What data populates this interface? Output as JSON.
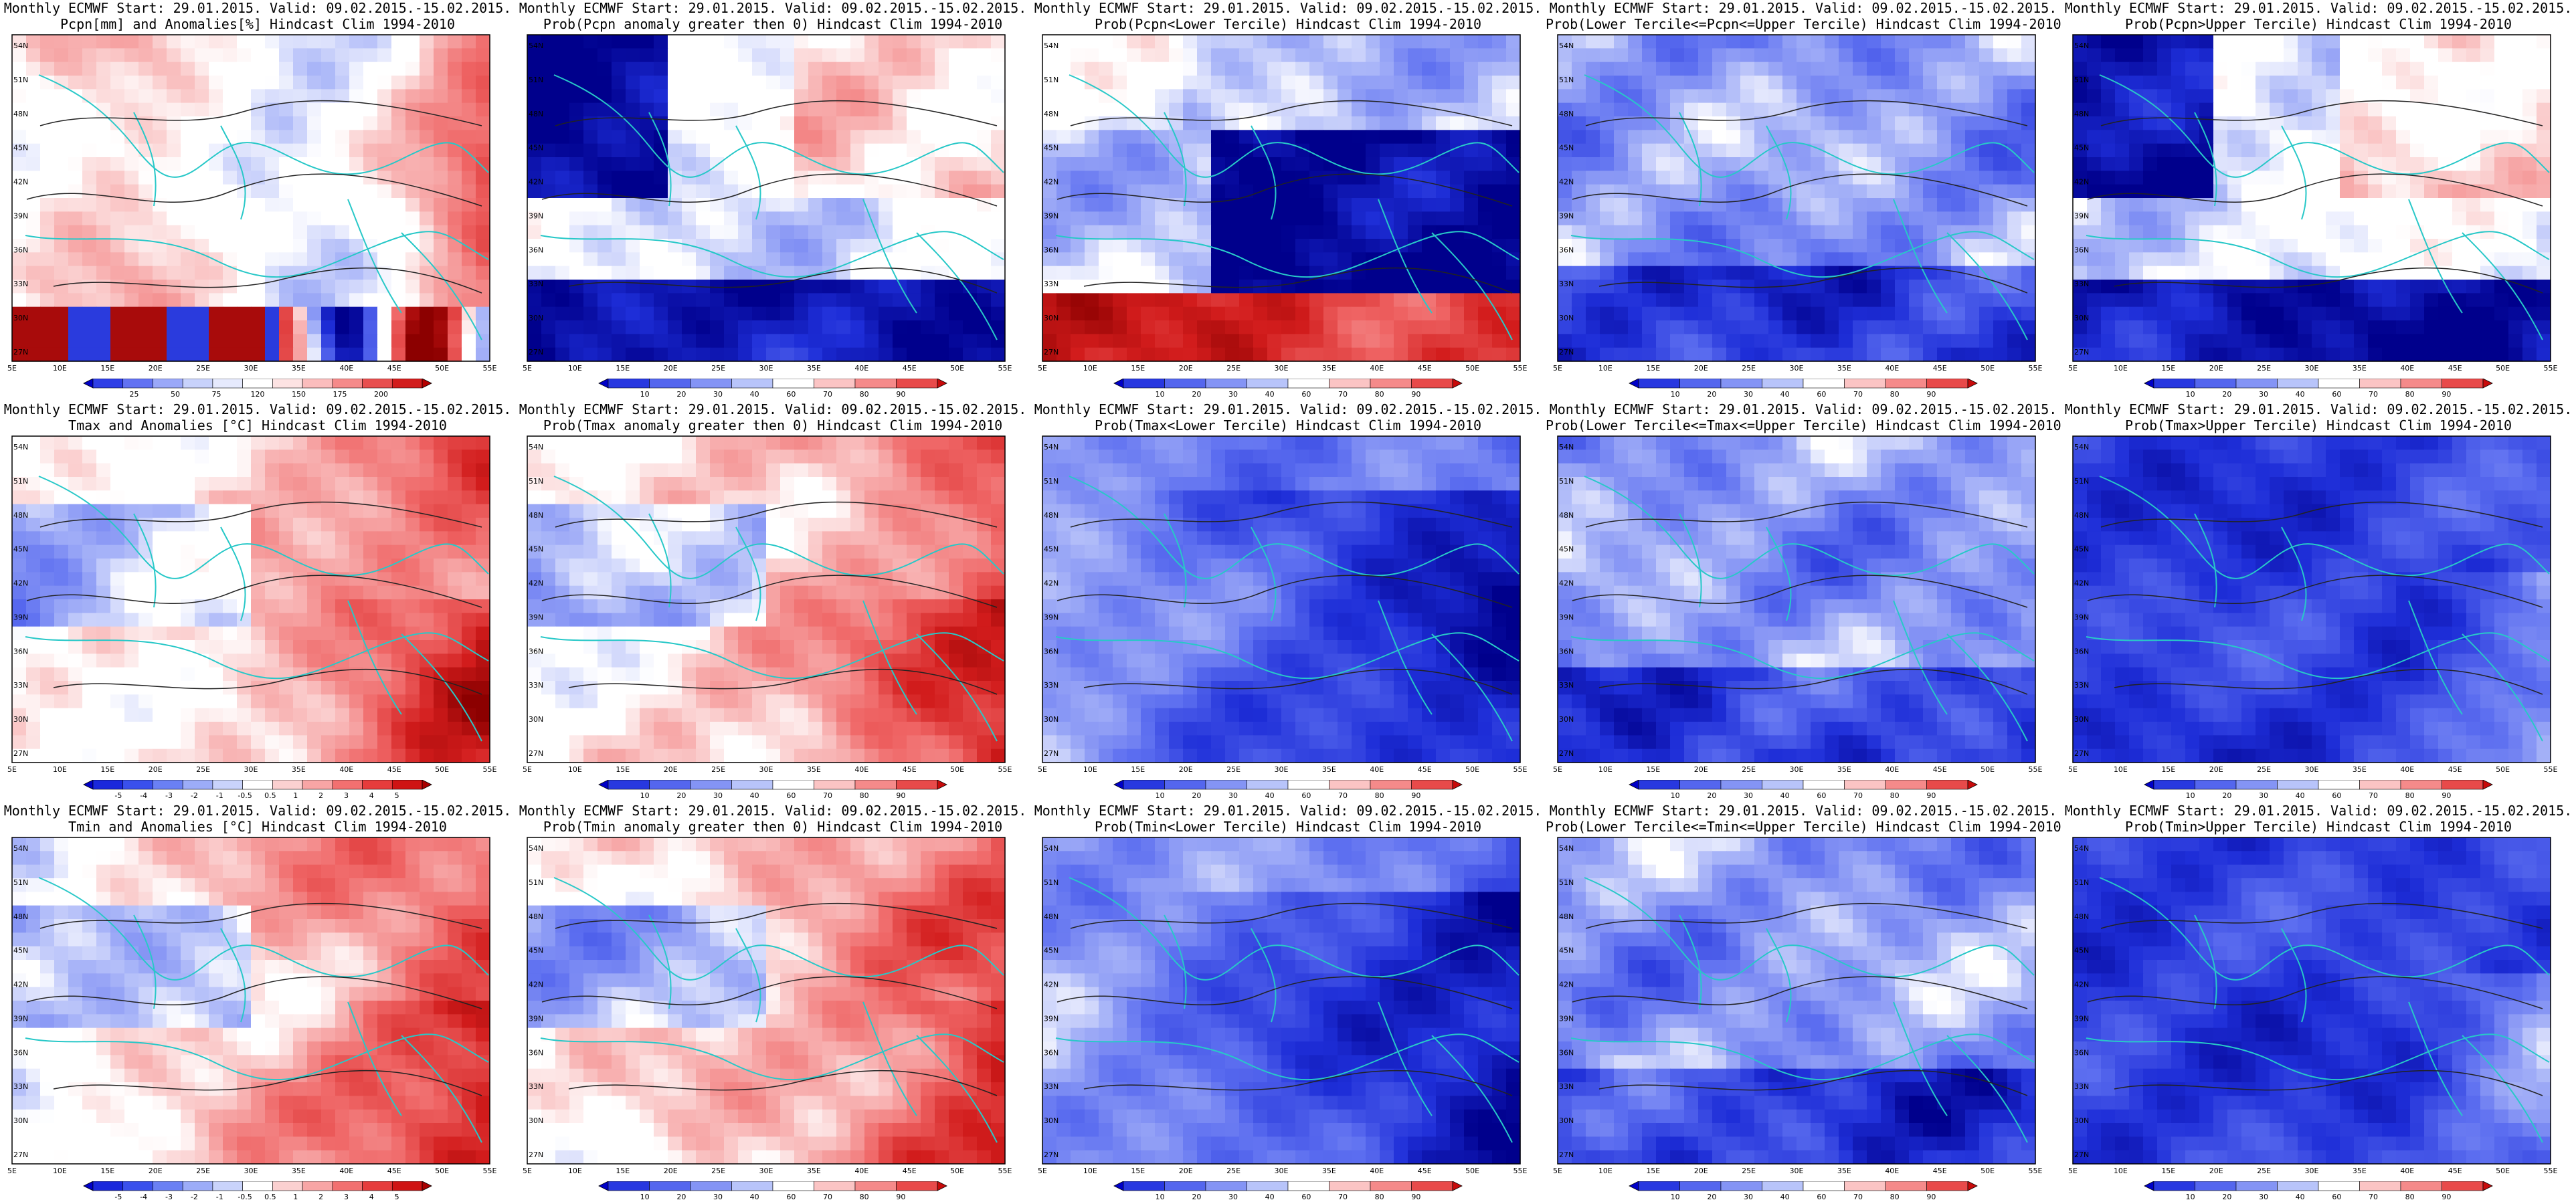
{
  "header": {
    "line1": "Monthly ECMWF Start: 29.01.2015. Valid: 09.02.2015.-15.02.2015."
  },
  "map": {
    "lon_labels": [
      "5E",
      "10E",
      "15E",
      "20E",
      "25E",
      "30E",
      "35E",
      "40E",
      "45E",
      "50E",
      "55E"
    ],
    "lat_labels": [
      "54N",
      "51N",
      "48N",
      "45N",
      "42N",
      "39N",
      "36N",
      "33N",
      "30N",
      "27N"
    ]
  },
  "colorbars": {
    "pcpn_anom": {
      "labels": [
        "25",
        "50",
        "75",
        "120",
        "150",
        "175",
        "200"
      ],
      "colors": [
        "#0000c8",
        "#2f3fe6",
        "#6272f2",
        "#9aa8f8",
        "#c8d2fb",
        "#e6eafd",
        "#ffffff",
        "#fde3e3",
        "#fbbdbd",
        "#f58a8a",
        "#e84f4f",
        "#d21d1d",
        "#b40000"
      ]
    },
    "temp_anom": {
      "labels": [
        "-5",
        "-4",
        "-3",
        "-2",
        "-1",
        "-0.5",
        "0.5",
        "1",
        "2",
        "3",
        "4",
        "5"
      ],
      "colors": [
        "#0000c8",
        "#1a28dc",
        "#3a50ec",
        "#6a80f4",
        "#9cacf8",
        "#c9d3fb",
        "#ffffff",
        "#fbd0d0",
        "#f8a5a5",
        "#f27070",
        "#e63c3c",
        "#cf1414",
        "#a80000"
      ]
    },
    "prob": {
      "labels": [
        "10",
        "20",
        "30",
        "40",
        "60",
        "70",
        "80",
        "90"
      ],
      "colors": [
        "#0000c8",
        "#2838e0",
        "#5466ee",
        "#8494f5",
        "#b8c4fa",
        "#ffffff",
        "#fbc4c4",
        "#f58a8a",
        "#e84a4a",
        "#c80a0a"
      ]
    }
  },
  "panels": [
    {
      "title2": "Pcpn[mm] and Anomalies[%] Hindcast Clim 1994-2010",
      "colorbar": "pcpn_anom",
      "pattern": "pcpn_anom"
    },
    {
      "title2": "Prob(Pcpn anomaly greater then 0) Hindcast Clim 1994-2010",
      "colorbar": "prob",
      "pattern": "pcpn_pos"
    },
    {
      "title2": "Prob(Pcpn<Lower Tercile) Hindcast Clim 1994-2010",
      "colorbar": "prob",
      "pattern": "pcpn_low"
    },
    {
      "title2": "Prob(Lower Tercile<=Pcpn<=Upper Tercile) Hindcast Clim 1994-2010",
      "colorbar": "prob",
      "pattern": "mid"
    },
    {
      "title2": "Prob(Pcpn>Upper Tercile) Hindcast Clim 1994-2010",
      "colorbar": "prob",
      "pattern": "pcpn_pos"
    },
    {
      "title2": "Tmax and Anomalies [°C] Hindcast Clim 1994-2010",
      "colorbar": "temp_anom",
      "pattern": "t_anom"
    },
    {
      "title2": "Prob(Tmax anomaly greater then 0) Hindcast Clim 1994-2010",
      "colorbar": "prob",
      "pattern": "t_anom"
    },
    {
      "title2": "Prob(Tmax<Lower Tercile) Hindcast Clim 1994-2010",
      "colorbar": "prob",
      "pattern": "t_low"
    },
    {
      "title2": "Prob(Lower Tercile<=Tmax<=Upper Tercile) Hindcast Clim 1994-2010",
      "colorbar": "prob",
      "pattern": "mid"
    },
    {
      "title2": "Prob(Tmax>Upper Tercile) Hindcast Clim 1994-2010",
      "colorbar": "prob",
      "pattern": "t_up"
    },
    {
      "title2": "Tmin and Anomalies [°C] Hindcast Clim 1994-2010",
      "colorbar": "temp_anom",
      "pattern": "t_anom"
    },
    {
      "title2": "Prob(Tmin anomaly greater then 0) Hindcast Clim 1994-2010",
      "colorbar": "prob",
      "pattern": "t_anom"
    },
    {
      "title2": "Prob(Tmin<Lower Tercile) Hindcast Clim 1994-2010",
      "colorbar": "prob",
      "pattern": "t_low"
    },
    {
      "title2": "Prob(Lower Tercile<=Tmin<=Upper Tercile) Hindcast Clim 1994-2010",
      "colorbar": "prob",
      "pattern": "mid"
    },
    {
      "title2": "Prob(Tmin>Upper Tercile) Hindcast Clim 1994-2010",
      "colorbar": "prob",
      "pattern": "t_up"
    }
  ]
}
